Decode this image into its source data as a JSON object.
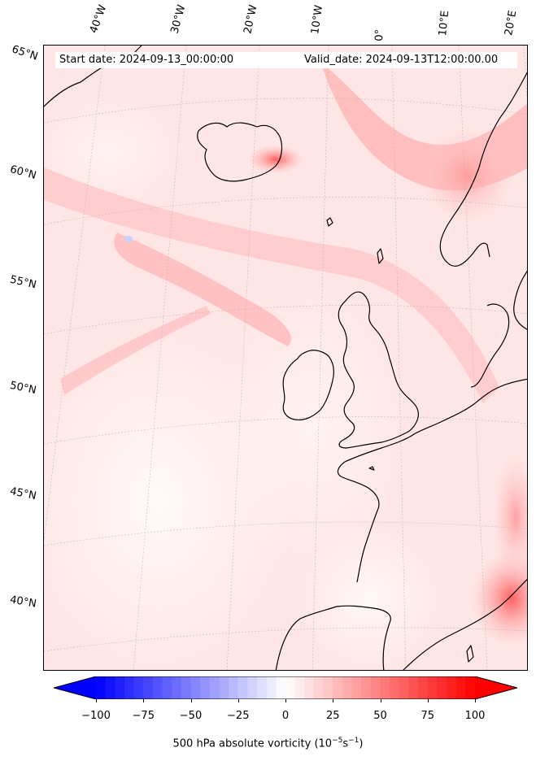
{
  "header": {
    "start_date": "Start date: 2024-09-13_00:00:00",
    "valid_date": "Valid_date: 2024-09-13T12:00:00.00"
  },
  "longitude_labels": [
    "40°W",
    "30°W",
    "20°W",
    "10°W",
    "0°",
    "10°E",
    "20°E"
  ],
  "latitude_labels": [
    "65°N",
    "60°N",
    "55°N",
    "50°N",
    "45°N",
    "40°N"
  ],
  "colorbar": {
    "min": -100,
    "max": 100,
    "ticks": [
      "−100",
      "−75",
      "−50",
      "−25",
      "0",
      "25",
      "50",
      "75",
      "100"
    ],
    "label": "500 hPa absolute vorticity (10",
    "label_exp1": "−5",
    "label_mid": "s",
    "label_exp2": "−1",
    "label_end": ")",
    "colors": {
      "negative": "#0000ff",
      "neutral": "#ffffff",
      "positive": "#ff0000"
    }
  },
  "map_colors": {
    "background": "#ffeaea",
    "land_outline": "#000000",
    "gridline": "#b0b0b0"
  }
}
